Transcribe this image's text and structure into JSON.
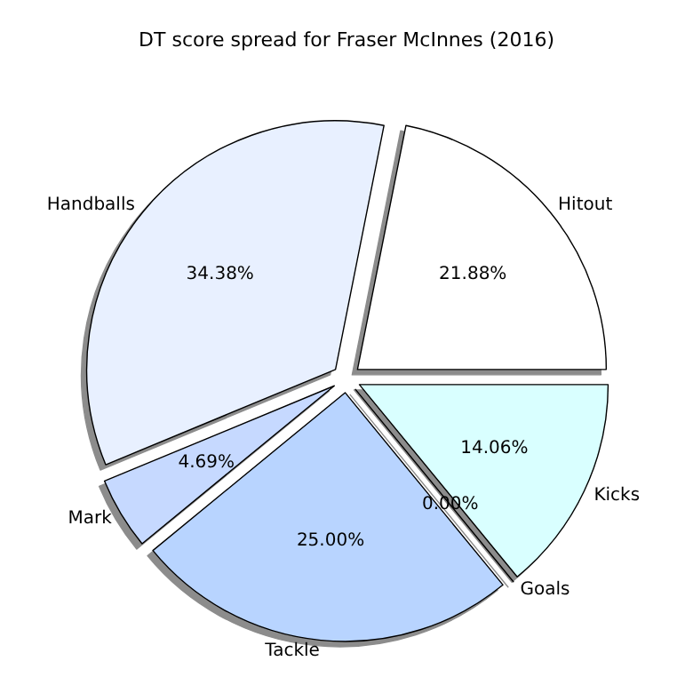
{
  "chart_data": {
    "type": "pie",
    "title": "DT score spread for Fraser McInnes (2016)",
    "categories": [
      "Hitout",
      "Handballs",
      "Mark",
      "Tackle",
      "Goals",
      "Kicks"
    ],
    "values": [
      21.88,
      34.38,
      4.69,
      25.0,
      0.0,
      14.06
    ],
    "colors": [
      "#ffffff",
      "#e8f0ff",
      "#c6d9ff",
      "#b8d4ff",
      "#c8e8ff",
      "#d9ffff"
    ],
    "value_labels": [
      "21.88%",
      "34.38%",
      "4.69%",
      "25.00%",
      "0.00%",
      "14.06%"
    ],
    "legend": false
  }
}
